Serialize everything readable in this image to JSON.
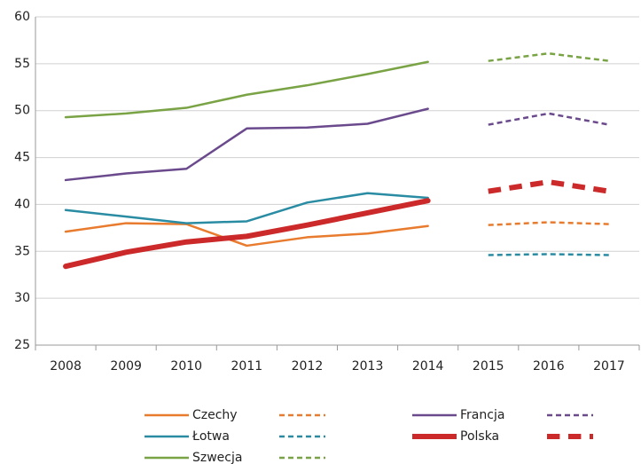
{
  "chart_data": {
    "type": "line",
    "categories": [
      "2008",
      "2009",
      "2010",
      "2011",
      "2012",
      "2013",
      "2014",
      "2015",
      "2016",
      "2017"
    ],
    "series": [
      {
        "name": "Czechy",
        "color": "#e87b2e",
        "width": 2.5,
        "values": [
          37.1,
          38.0,
          37.9,
          35.6,
          36.5,
          36.9,
          37.7,
          null,
          null,
          null
        ],
        "forecast_values": [
          null,
          null,
          null,
          null,
          null,
          null,
          null,
          37.8,
          38.1,
          37.9
        ]
      },
      {
        "name": "Łotwa",
        "color": "#2a8ca3",
        "width": 2.5,
        "values": [
          39.4,
          38.7,
          38.0,
          38.2,
          40.2,
          41.2,
          40.7,
          null,
          null,
          null
        ],
        "forecast_values": [
          null,
          null,
          null,
          null,
          null,
          null,
          null,
          34.6,
          34.7,
          34.6
        ]
      },
      {
        "name": "Szwecja",
        "color": "#79a345",
        "width": 2.5,
        "values": [
          49.3,
          49.7,
          50.3,
          51.7,
          52.7,
          53.9,
          55.2,
          null,
          null,
          null
        ],
        "forecast_values": [
          null,
          null,
          null,
          null,
          null,
          null,
          null,
          55.3,
          56.1,
          55.3
        ]
      },
      {
        "name": "Francja",
        "color": "#6a4a8c",
        "width": 2.5,
        "values": [
          42.6,
          43.3,
          43.8,
          48.1,
          48.2,
          48.6,
          50.2,
          null,
          null,
          null
        ],
        "forecast_values": [
          null,
          null,
          null,
          null,
          null,
          null,
          null,
          48.5,
          49.7,
          48.5
        ]
      },
      {
        "name": "Polska",
        "color": "#cc2a2a",
        "width": 6,
        "values": [
          33.4,
          34.9,
          36.0,
          36.6,
          37.8,
          39.1,
          40.4,
          null,
          null,
          null
        ],
        "forecast_values": [
          null,
          null,
          null,
          null,
          null,
          null,
          null,
          41.4,
          42.4,
          41.4
        ]
      }
    ],
    "ylim": [
      25,
      60
    ],
    "yticks": [
      25,
      30,
      35,
      40,
      45,
      50,
      55,
      60
    ],
    "grid": true
  }
}
